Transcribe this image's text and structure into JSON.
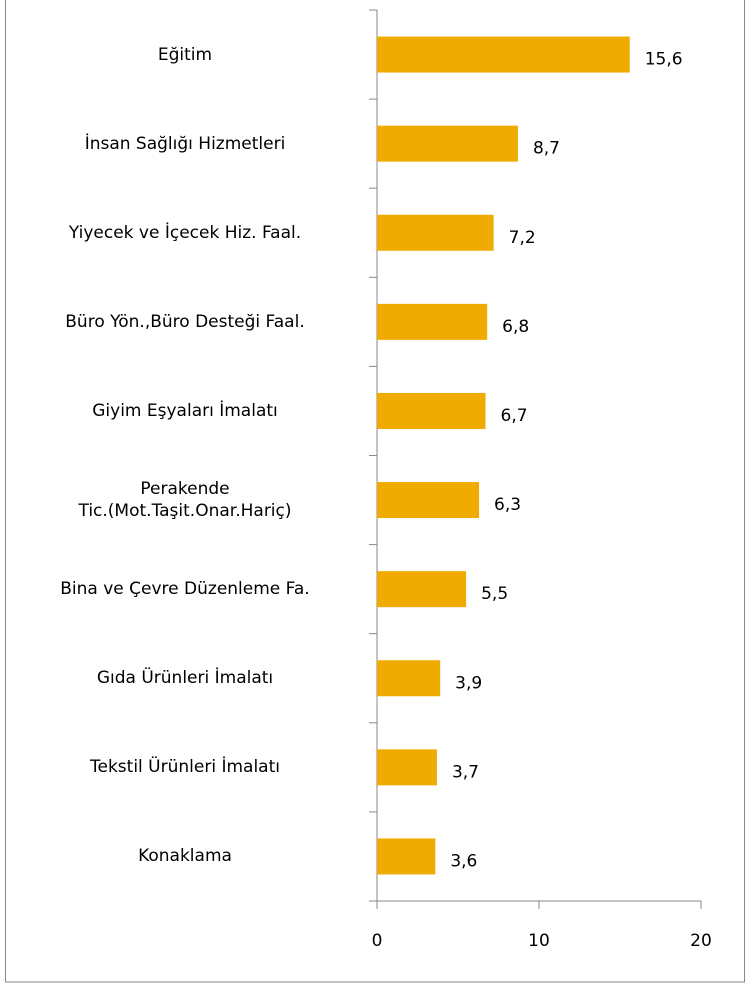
{
  "chart_data": {
    "type": "bar",
    "orientation": "horizontal",
    "categories": [
      "Eğitim",
      "İnsan Sağlığı Hizmetleri",
      "Yiyecek ve İçecek Hiz. Faal.",
      "Büro Yön.,Büro Desteği Faal.",
      "Giyim Eşyaları İmalatı",
      "Perakende\nTic.(Mot.Taşit.Onar.Hariç)",
      "Bina ve Çevre Düzenleme Fa.",
      "Gıda Ürünleri İmalatı",
      "Tekstil Ürünleri İmalatı",
      "Konaklama"
    ],
    "values": [
      15.6,
      8.7,
      7.2,
      6.8,
      6.7,
      6.3,
      5.5,
      3.9,
      3.7,
      3.6
    ],
    "value_labels": [
      "15,6",
      "8,7",
      "7,2",
      "6,8",
      "6,7",
      "6,3",
      "5,5",
      "3,9",
      "3,7",
      "3,6"
    ],
    "color": "#f0ab00",
    "xlim": [
      0,
      20
    ],
    "xticks": [
      0,
      10,
      20
    ]
  }
}
